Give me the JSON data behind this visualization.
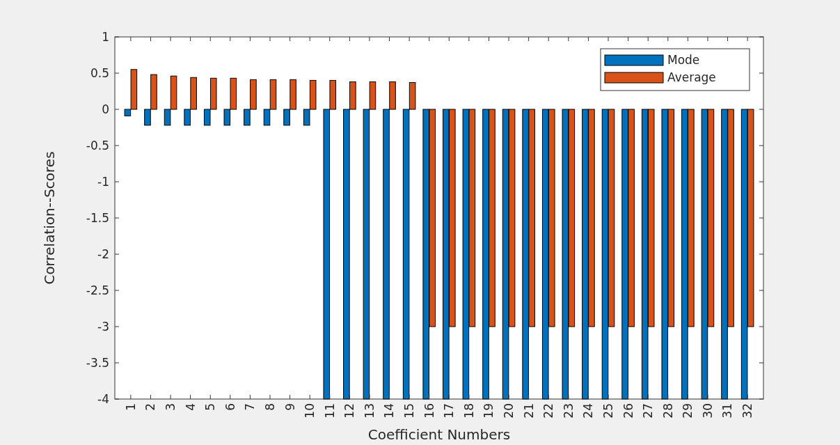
{
  "chart_data": {
    "type": "bar",
    "xlabel": "Coefficient Numbers",
    "ylabel": "Correlation--Scores",
    "categories": [
      "1",
      "2",
      "3",
      "4",
      "5",
      "6",
      "7",
      "8",
      "9",
      "10",
      "11",
      "12",
      "13",
      "14",
      "15",
      "16",
      "17",
      "18",
      "19",
      "20",
      "21",
      "22",
      "23",
      "24",
      "25",
      "26",
      "27",
      "28",
      "29",
      "30",
      "31",
      "32"
    ],
    "series": [
      {
        "name": "Mode",
        "color": "#0072bd",
        "values": [
          -0.09,
          -0.22,
          -0.22,
          -0.22,
          -0.22,
          -0.22,
          -0.22,
          -0.22,
          -0.22,
          -0.22,
          -4,
          -4,
          -4,
          -4,
          -4,
          -4,
          -4,
          -4,
          -4,
          -4,
          -4,
          -4,
          -4,
          -4,
          -4,
          -4,
          -4,
          -4,
          -4,
          -4,
          -4,
          -4
        ]
      },
      {
        "name": "Average",
        "color": "#d95319",
        "values": [
          0.55,
          0.48,
          0.46,
          0.44,
          0.43,
          0.43,
          0.41,
          0.41,
          0.41,
          0.4,
          0.4,
          0.38,
          0.38,
          0.38,
          0.37,
          -3,
          -3,
          -3,
          -3,
          -3,
          -3,
          -3,
          -3,
          -3,
          -3,
          -3,
          -3,
          -3,
          -3,
          -3,
          -3,
          -3
        ]
      }
    ],
    "ylim": [
      -4,
      1
    ],
    "yticks": [
      -4,
      -3.5,
      -3,
      -2.5,
      -2,
      -1.5,
      -1,
      -0.5,
      0,
      0.5,
      1
    ],
    "grid": false,
    "legend": "top right"
  }
}
